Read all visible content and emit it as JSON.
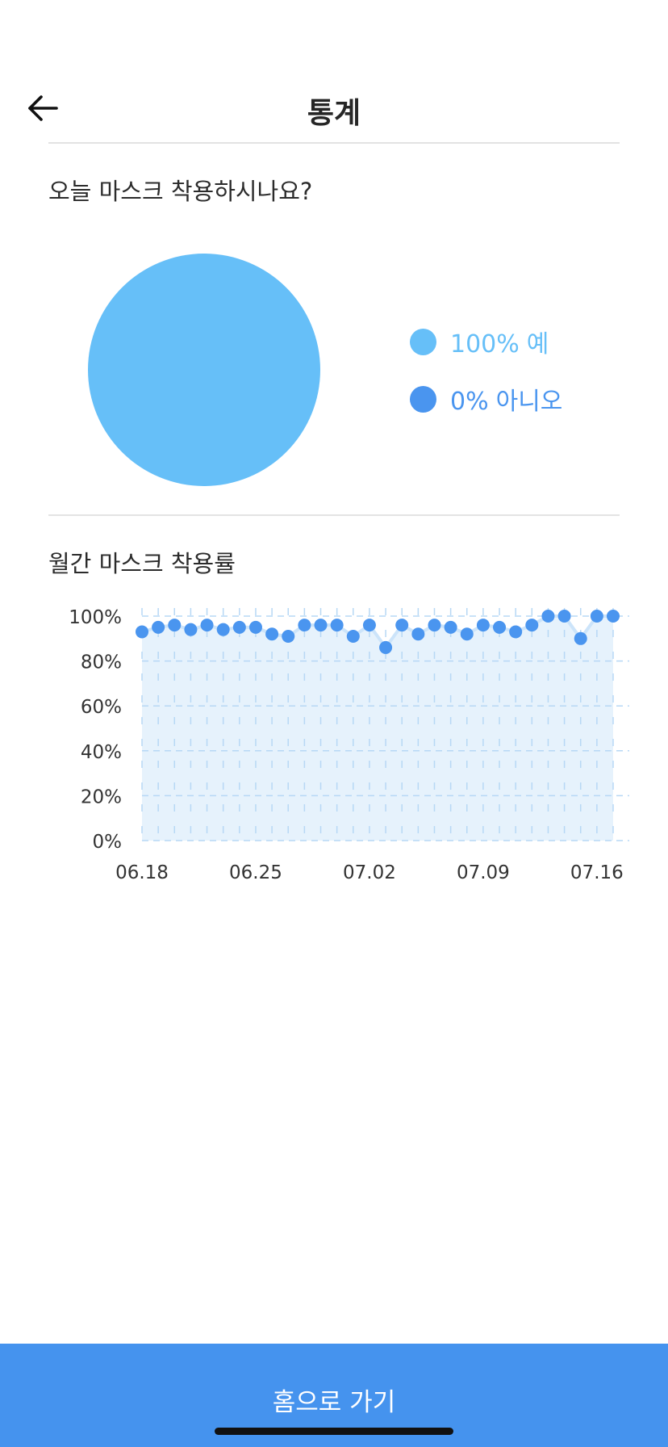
{
  "header": {
    "title": "통계",
    "back_icon": "arrow-left-icon"
  },
  "today": {
    "question": "오늘 마스크 착용하시나요?",
    "legend": [
      {
        "percent": "100%",
        "label": "예",
        "color": "#66bff8"
      },
      {
        "percent": "0%",
        "label": "아니오",
        "color": "#4a95ef"
      }
    ]
  },
  "monthly": {
    "title": "월간 마스크 착용률"
  },
  "chart_data": [
    {
      "type": "pie",
      "labels": [
        "예",
        "아니오"
      ],
      "values": [
        100,
        0
      ],
      "colors": [
        "#66bff8",
        "#4a95ef"
      ]
    },
    {
      "type": "line",
      "xlabel": "",
      "ylabel": "",
      "ylim": [
        0,
        100
      ],
      "y_ticks": [
        "100%",
        "80%",
        "60%",
        "40%",
        "20%",
        "0%"
      ],
      "x_tick_labels": [
        "06.18",
        "06.25",
        "07.02",
        "07.09",
        "07.16"
      ],
      "grid": true,
      "area_fill": true,
      "line_color": "#4a95ef",
      "fill_color": "#e6f2fc",
      "series": [
        {
          "values": [
            93,
            95,
            96,
            94,
            96,
            94,
            95,
            95,
            92,
            91,
            96,
            96,
            96,
            91,
            96,
            86,
            96,
            92,
            96,
            95,
            92,
            96,
            95,
            93,
            96,
            100,
            100,
            90,
            100,
            100
          ]
        }
      ]
    }
  ],
  "footer": {
    "home_label": "홈으로 가기"
  }
}
